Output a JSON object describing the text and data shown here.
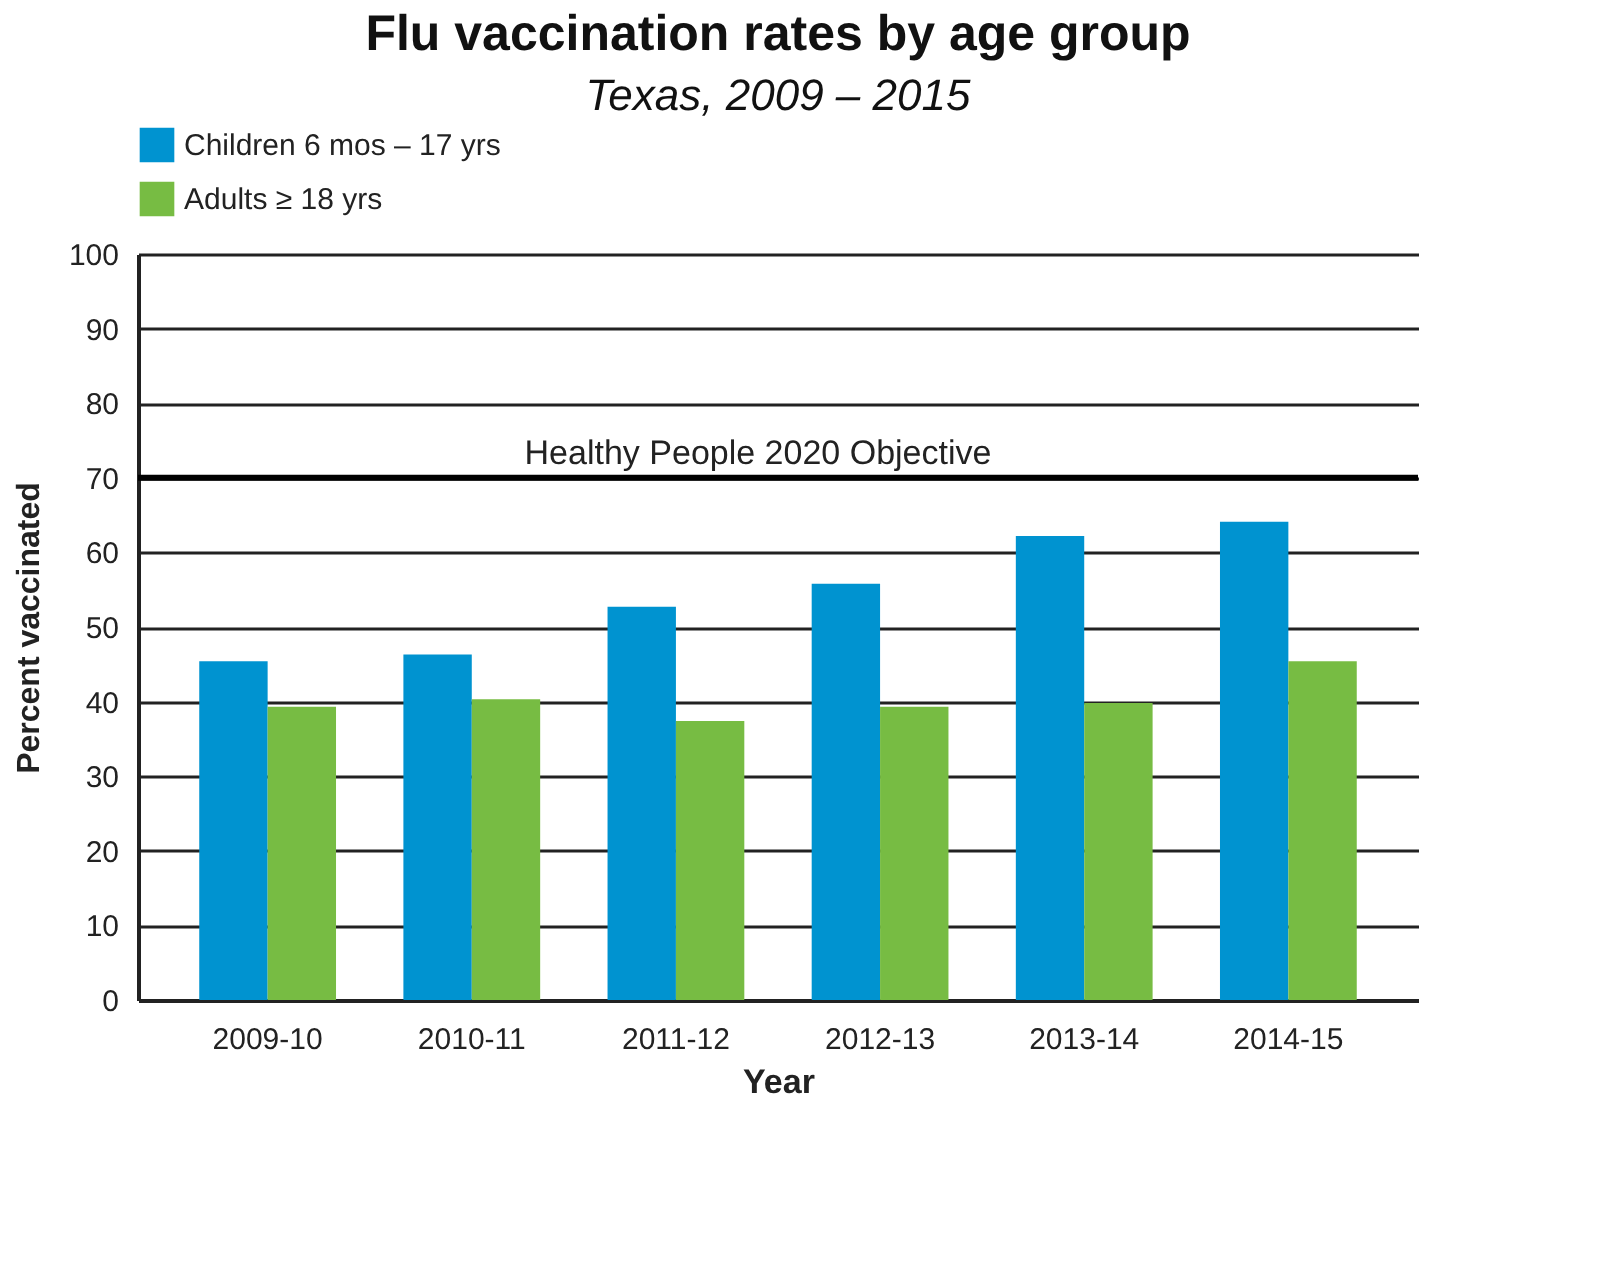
{
  "chart_data": {
    "type": "bar",
    "title": "Flu vaccination rates by age group",
    "subtitle": "Texas, 2009 – 2015",
    "categories": [
      "2009-10",
      "2010-11",
      "2011-12",
      "2012-13",
      "2013-14",
      "2014-15"
    ],
    "series": [
      {
        "name": "Children 6 mos – 17 yrs",
        "color": "#0093d0",
        "values": [
          45.4,
          46.3,
          52.7,
          55.8,
          62.2,
          64.1
        ]
      },
      {
        "name": "Adults ≥ 18 yrs",
        "color": "#77bc43",
        "values": [
          39.3,
          40.3,
          37.4,
          39.3,
          39.8,
          45.4
        ]
      }
    ],
    "xlabel": "Year",
    "ylabel": "Percent vaccinated",
    "ylim": [
      0,
      100
    ],
    "yticks": [
      0,
      10,
      20,
      30,
      40,
      50,
      60,
      70,
      80,
      90,
      100
    ],
    "ref_lines": [
      {
        "axis": "y",
        "value": 70,
        "label": "Healthy People 2020 Objective"
      }
    ],
    "grid": "y",
    "legend": "top"
  }
}
